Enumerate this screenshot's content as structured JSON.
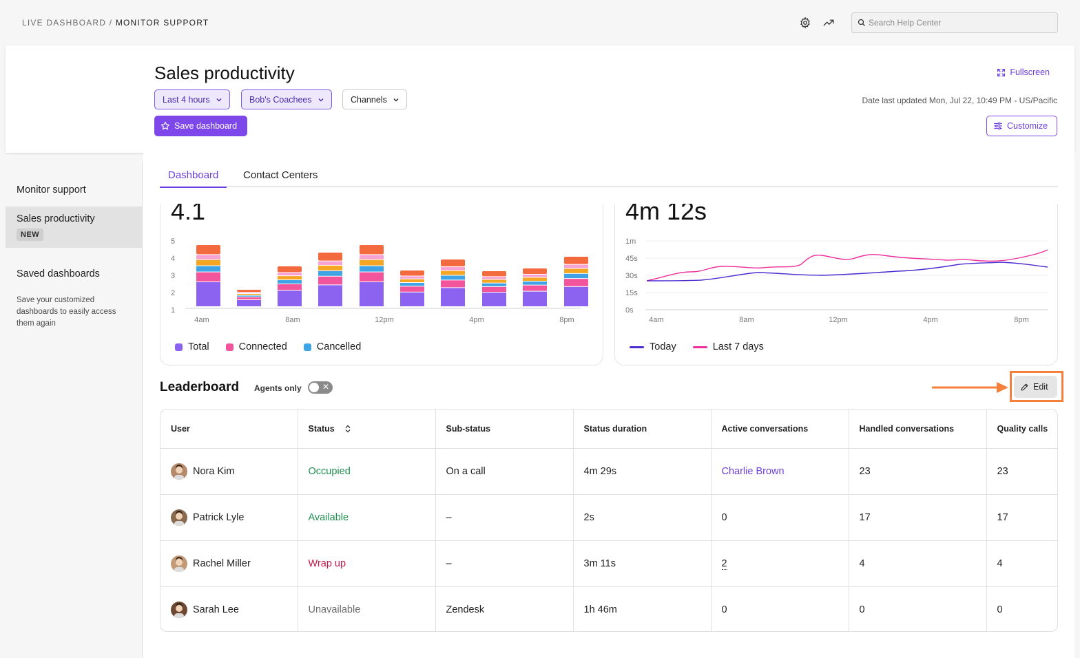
{
  "breadcrumb": {
    "root": "LIVE DASHBOARD",
    "separator": "/",
    "current": "MONITOR SUPPORT"
  },
  "search": {
    "placeholder": "Search Help Center",
    "value": ""
  },
  "header": {
    "title": "Sales productivity",
    "filters": [
      {
        "label": "Last 4 hours",
        "active": true
      },
      {
        "label": "Bob's Coachees",
        "active": true
      },
      {
        "label": "Channels",
        "active": false
      }
    ],
    "save_label": "Save dashboard",
    "fullscreen_label": "Fullscreen",
    "updated": "Date last updated Mon, Jul 22, 10:49 PM - US/Pacific",
    "customize_label": "Customize"
  },
  "sidebar": {
    "monitor_support": "Monitor support",
    "selected_item": "Sales productivity",
    "new_badge": "NEW",
    "saved_title": "Saved dashboards",
    "saved_desc": "Save your customized dashboards to easily access them again"
  },
  "tabs": [
    {
      "label": "Dashboard"
    },
    {
      "label": "Contact Centers"
    }
  ],
  "bar_chart": {
    "big_number": "4.1",
    "y_ticks": [
      "5",
      "4",
      "3",
      "2",
      "1"
    ],
    "x_ticks": [
      "4am",
      "8am",
      "12pm",
      "4pm",
      "8pm"
    ],
    "legend": [
      "Total",
      "Connected",
      "Cancelled"
    ],
    "colors": {
      "total": "#8b63f0",
      "connected": "#f2559c",
      "cancelled": "#3fa3e6",
      "orange": "#f5a623",
      "red": "#f26a3d",
      "pink_light": "#f6a2d2"
    }
  },
  "line_chart": {
    "big_number": "4m 12s",
    "y_ticks": [
      "1m",
      "45s",
      "30s",
      "15s",
      "0s"
    ],
    "x_ticks": [
      "4am",
      "8am",
      "12pm",
      "4pm",
      "8pm"
    ],
    "legend": [
      "Today",
      "Last 7 days"
    ],
    "colors": {
      "today": "#4b2bd0",
      "last7": "#ee2e9a"
    }
  },
  "leaderboard": {
    "title": "Leaderboard",
    "agents_only_label": "Agents only",
    "agents_only_on": false,
    "edit_label": "Edit",
    "columns": [
      "User",
      "Status",
      "Sub-status",
      "Status duration",
      "Active conversations",
      "Handled conversations",
      "Quality calls"
    ],
    "rows": [
      {
        "user": "Nora Kim",
        "status": "Occupied",
        "status_color": "#1e8f4e",
        "sub_status": "On a call",
        "duration": "4m 29s",
        "active": "Charlie Brown",
        "handled": "23",
        "quality": "23"
      },
      {
        "user": "Patrick Lyle",
        "status": "Available",
        "status_color": "#1e8f4e",
        "sub_status": "–",
        "duration": "2s",
        "active": "0",
        "handled": "17",
        "quality": "17"
      },
      {
        "user": "Rachel Miller",
        "status": "Wrap up",
        "status_color": "#c9184a",
        "sub_status": "–",
        "duration": "3m 11s",
        "active": "2",
        "handled": "4",
        "quality": "4"
      },
      {
        "user": "Sarah Lee",
        "status": "Unavailable",
        "status_color": "#6b6b6b",
        "sub_status": "Zendesk",
        "duration": "1h 46m",
        "active": "0",
        "handled": "0",
        "quality": "0"
      }
    ]
  }
}
